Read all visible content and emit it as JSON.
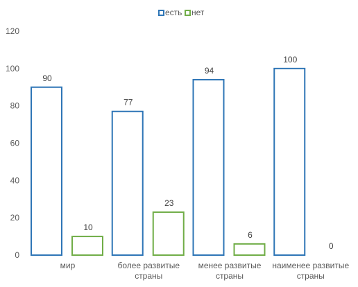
{
  "chart_data": {
    "type": "bar",
    "categories": [
      [
        "мир"
      ],
      [
        "более развитые",
        "страны"
      ],
      [
        "менее развитые",
        "страны"
      ],
      [
        "наименее развитые",
        "страны"
      ]
    ],
    "series": [
      {
        "name": "есть",
        "values": [
          90,
          77,
          94,
          100
        ],
        "color": "#2E75B6"
      },
      {
        "name": "нет",
        "values": [
          10,
          23,
          6,
          0
        ],
        "color": "#70AD47"
      }
    ],
    "ylim": [
      0,
      120
    ],
    "yticks": [
      0,
      20,
      40,
      60,
      80,
      100,
      120
    ],
    "data_labels": true,
    "grid": false,
    "legend": "top-center",
    "bar_style": "outline"
  }
}
